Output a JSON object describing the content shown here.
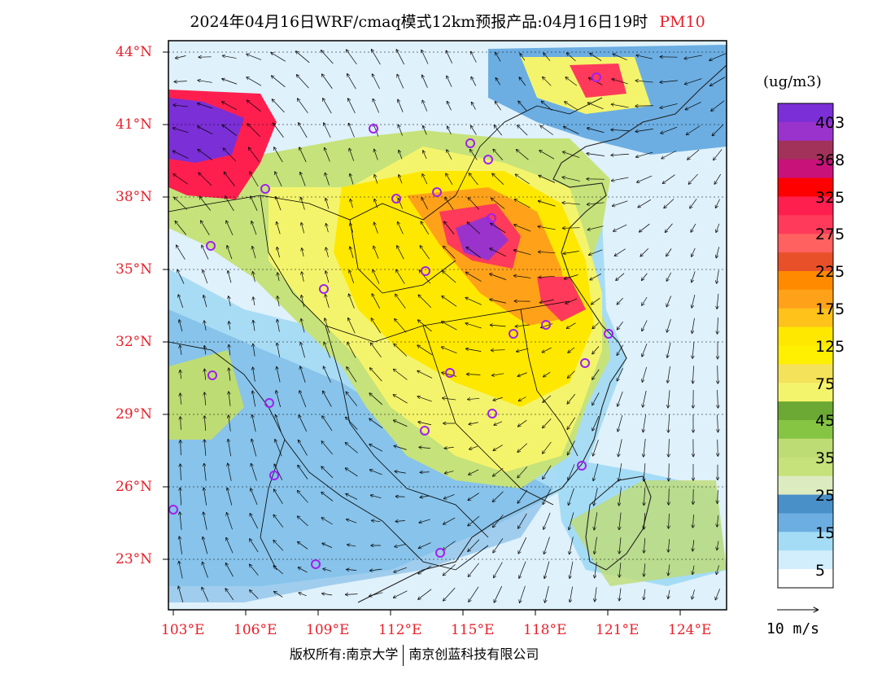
{
  "title": {
    "main": "2024年04月16日WRF/cmaq模式12km预报产品:04月16日19时",
    "species": "PM10"
  },
  "map": {
    "lat_labels": [
      "44°N",
      "41°N",
      "38°N",
      "35°N",
      "32°N",
      "29°N",
      "26°N",
      "23°N"
    ],
    "lon_labels": [
      "103°E",
      "106°E",
      "109°E",
      "112°E",
      "115°E",
      "118°E",
      "121°E",
      "124°E"
    ]
  },
  "colorbar": {
    "unit": "(ug/m3)",
    "labels": [
      "403",
      "368",
      "325",
      "275",
      "225",
      "175",
      "125",
      "75",
      "45",
      "35",
      "25",
      "15",
      "5"
    ],
    "colors_top_to_bottom": [
      "#7b2fd6",
      "#9a33cc",
      "#a3325a",
      "#c8127a",
      "#ff0000",
      "#ff1f4f",
      "#ff3a5a",
      "#ff6060",
      "#e8502a",
      "#ff8a00",
      "#ffa21a",
      "#ffc21a",
      "#ffe800",
      "#ffef00",
      "#f3e25a",
      "#f4f46c",
      "#6ba834",
      "#86c544",
      "#bedc74",
      "#c6e27a",
      "#dcecc0",
      "#4a90c8",
      "#6caee2",
      "#a4dcf6",
      "#d2eefc",
      "#ffffff"
    ]
  },
  "wind_reference": {
    "label": "10 m/s"
  },
  "footer": {
    "left": "版权所有:南京大学",
    "right": "南京创蓝科技有限公司"
  }
}
